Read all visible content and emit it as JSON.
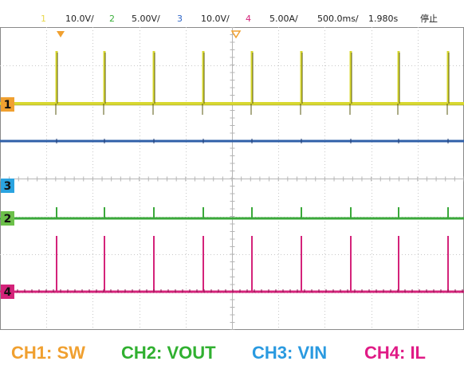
{
  "header": {
    "ch1": {
      "num": "1",
      "scale": "10.0V/"
    },
    "ch2": {
      "num": "2",
      "scale": "5.00V/"
    },
    "ch3": {
      "num": "3",
      "scale": "10.0V/"
    },
    "ch4": {
      "num": "4",
      "scale": "5.00A/"
    },
    "timebase": "500.0ms/",
    "offset": "1.980s",
    "status": "停止"
  },
  "markers": {
    "ch1": "1",
    "ch3": "3",
    "ch2": "2",
    "ch4": "4"
  },
  "legend": {
    "ch1": "CH1:  SW",
    "ch2": "CH2:  VOUT",
    "ch3": "CH3:  VIN",
    "ch4": "CH4:  IL"
  },
  "colors": {
    "ch1": "#d8d830",
    "ch2": "#3aa83a",
    "ch3": "#2f5fa8",
    "ch4": "#d4237a",
    "ch1_label": "#f0a030",
    "ch2_label": "#30b030",
    "ch3_label": "#2a9ae0",
    "ch4_label": "#e01b86",
    "ch3_marker": "#2aa3e0",
    "grid": "#c8c8c8"
  }
}
